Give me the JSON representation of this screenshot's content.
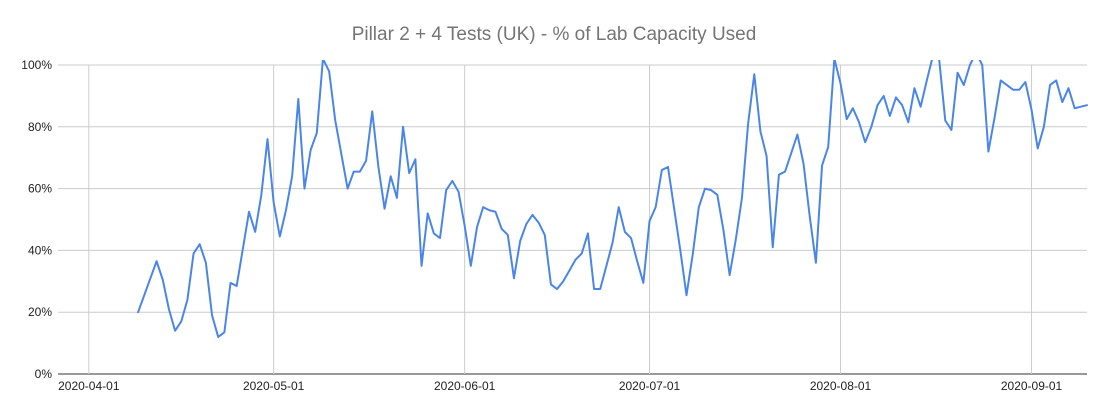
{
  "chart_data": {
    "type": "line",
    "title": "Pillar 2 + 4 Tests (UK) - % of Lab Capacity Used",
    "xlabel": "",
    "ylabel": "",
    "ylim": [
      0,
      100
    ],
    "yticks": [
      0,
      20,
      40,
      60,
      80,
      100
    ],
    "ytick_labels": [
      "0%",
      "20%",
      "40%",
      "60%",
      "80%",
      "100%"
    ],
    "xticks": [
      "2020-04-01",
      "2020-05-01",
      "2020-06-01",
      "2020-07-01",
      "2020-08-01",
      "2020-09-01"
    ],
    "xlim": [
      "2020-03-27",
      "2020-09-10"
    ],
    "grid": true,
    "legend": "none",
    "line_color": "#4a86e8",
    "series": [
      {
        "points": [
          [
            "2020-04-09",
            20
          ],
          [
            "2020-04-12",
            36.5
          ],
          [
            "2020-04-13",
            30.5
          ],
          [
            "2020-04-14",
            21
          ],
          [
            "2020-04-15",
            14
          ],
          [
            "2020-04-16",
            17
          ],
          [
            "2020-04-17",
            24
          ],
          [
            "2020-04-18",
            39
          ],
          [
            "2020-04-19",
            42
          ],
          [
            "2020-04-20",
            36
          ],
          [
            "2020-04-21",
            19
          ],
          [
            "2020-04-22",
            12
          ],
          [
            "2020-04-23",
            13.5
          ],
          [
            "2020-04-24",
            29.5
          ],
          [
            "2020-04-25",
            28.5
          ],
          [
            "2020-04-27",
            52.5
          ],
          [
            "2020-04-28",
            46
          ],
          [
            "2020-04-29",
            58
          ],
          [
            "2020-04-30",
            76
          ],
          [
            "2020-05-01",
            55.5
          ],
          [
            "2020-05-02",
            44.5
          ],
          [
            "2020-05-03",
            53
          ],
          [
            "2020-05-04",
            64
          ],
          [
            "2020-05-05",
            89
          ],
          [
            "2020-05-06",
            60
          ],
          [
            "2020-05-07",
            72.5
          ],
          [
            "2020-05-08",
            78
          ],
          [
            "2020-05-09",
            102
          ],
          [
            "2020-05-10",
            98
          ],
          [
            "2020-05-11",
            82
          ],
          [
            "2020-05-12",
            71
          ],
          [
            "2020-05-13",
            60
          ],
          [
            "2020-05-14",
            65.5
          ],
          [
            "2020-05-15",
            65.5
          ],
          [
            "2020-05-16",
            69
          ],
          [
            "2020-05-17",
            85
          ],
          [
            "2020-05-18",
            67
          ],
          [
            "2020-05-19",
            53.5
          ],
          [
            "2020-05-20",
            64
          ],
          [
            "2020-05-21",
            57
          ],
          [
            "2020-05-22",
            80
          ],
          [
            "2020-05-23",
            65
          ],
          [
            "2020-05-24",
            69.5
          ],
          [
            "2020-05-25",
            35
          ],
          [
            "2020-05-26",
            52
          ],
          [
            "2020-05-27",
            45.5
          ],
          [
            "2020-05-28",
            44
          ],
          [
            "2020-05-29",
            59.5
          ],
          [
            "2020-05-30",
            62.5
          ],
          [
            "2020-05-31",
            59
          ],
          [
            "2020-06-01",
            48
          ],
          [
            "2020-06-02",
            35
          ],
          [
            "2020-06-03",
            47.5
          ],
          [
            "2020-06-04",
            54
          ],
          [
            "2020-06-05",
            53
          ],
          [
            "2020-06-06",
            52.5
          ],
          [
            "2020-06-07",
            47
          ],
          [
            "2020-06-08",
            45
          ],
          [
            "2020-06-09",
            31
          ],
          [
            "2020-06-10",
            43
          ],
          [
            "2020-06-11",
            48.5
          ],
          [
            "2020-06-12",
            51.5
          ],
          [
            "2020-06-13",
            49
          ],
          [
            "2020-06-14",
            45
          ],
          [
            "2020-06-15",
            29
          ],
          [
            "2020-06-16",
            27.5
          ],
          [
            "2020-06-17",
            30
          ],
          [
            "2020-06-18",
            33.5
          ],
          [
            "2020-06-19",
            37
          ],
          [
            "2020-06-20",
            39
          ],
          [
            "2020-06-21",
            45.5
          ],
          [
            "2020-06-22",
            27.5
          ],
          [
            "2020-06-23",
            27.5
          ],
          [
            "2020-06-24",
            35
          ],
          [
            "2020-06-25",
            42.5
          ],
          [
            "2020-06-26",
            54
          ],
          [
            "2020-06-27",
            46
          ],
          [
            "2020-06-28",
            44
          ],
          [
            "2020-06-29",
            36.5
          ],
          [
            "2020-06-30",
            29.5
          ],
          [
            "2020-07-01",
            49.5
          ],
          [
            "2020-07-02",
            54
          ],
          [
            "2020-07-03",
            66
          ],
          [
            "2020-07-04",
            67
          ],
          [
            "2020-07-05",
            53.5
          ],
          [
            "2020-07-06",
            40
          ],
          [
            "2020-07-07",
            25.5
          ],
          [
            "2020-07-08",
            38.5
          ],
          [
            "2020-07-09",
            54
          ],
          [
            "2020-07-10",
            60
          ],
          [
            "2020-07-11",
            59.5
          ],
          [
            "2020-07-12",
            58
          ],
          [
            "2020-07-13",
            46.5
          ],
          [
            "2020-07-14",
            32
          ],
          [
            "2020-07-15",
            43.5
          ],
          [
            "2020-07-16",
            57
          ],
          [
            "2020-07-17",
            81
          ],
          [
            "2020-07-18",
            97
          ],
          [
            "2020-07-19",
            78.5
          ],
          [
            "2020-07-20",
            70.5
          ],
          [
            "2020-07-21",
            41
          ],
          [
            "2020-07-22",
            64.5
          ],
          [
            "2020-07-23",
            65.5
          ],
          [
            "2020-07-24",
            71.5
          ],
          [
            "2020-07-25",
            77.5
          ],
          [
            "2020-07-26",
            68
          ],
          [
            "2020-07-27",
            51
          ],
          [
            "2020-07-28",
            36
          ],
          [
            "2020-07-29",
            67.5
          ],
          [
            "2020-07-30",
            73.5
          ],
          [
            "2020-07-31",
            102
          ],
          [
            "2020-08-01",
            94
          ],
          [
            "2020-08-02",
            82.5
          ],
          [
            "2020-08-03",
            86
          ],
          [
            "2020-08-04",
            81.5
          ],
          [
            "2020-08-05",
            75
          ],
          [
            "2020-08-06",
            80
          ],
          [
            "2020-08-07",
            87
          ],
          [
            "2020-08-08",
            90
          ],
          [
            "2020-08-09",
            83.5
          ],
          [
            "2020-08-10",
            89.5
          ],
          [
            "2020-08-11",
            87
          ],
          [
            "2020-08-12",
            81.5
          ],
          [
            "2020-08-13",
            92.5
          ],
          [
            "2020-08-14",
            86.5
          ],
          [
            "2020-08-15",
            95
          ],
          [
            "2020-08-16",
            103
          ],
          [
            "2020-08-17",
            102
          ],
          [
            "2020-08-18",
            82
          ],
          [
            "2020-08-19",
            79
          ],
          [
            "2020-08-20",
            97.5
          ],
          [
            "2020-08-21",
            93.5
          ],
          [
            "2020-08-22",
            100
          ],
          [
            "2020-08-23",
            104
          ],
          [
            "2020-08-24",
            100
          ],
          [
            "2020-08-25",
            72
          ],
          [
            "2020-08-26",
            83
          ],
          [
            "2020-08-27",
            95
          ],
          [
            "2020-08-28",
            93.5
          ],
          [
            "2020-08-29",
            92
          ],
          [
            "2020-08-30",
            92
          ],
          [
            "2020-08-31",
            94.5
          ],
          [
            "2020-09-01",
            85.5
          ],
          [
            "2020-09-02",
            73
          ],
          [
            "2020-09-03",
            80
          ],
          [
            "2020-09-04",
            93.5
          ],
          [
            "2020-09-05",
            95
          ],
          [
            "2020-09-06",
            88
          ],
          [
            "2020-09-07",
            92.5
          ],
          [
            "2020-09-08",
            86
          ],
          [
            "2020-09-09",
            86.5
          ],
          [
            "2020-09-10",
            87
          ]
        ]
      }
    ]
  }
}
